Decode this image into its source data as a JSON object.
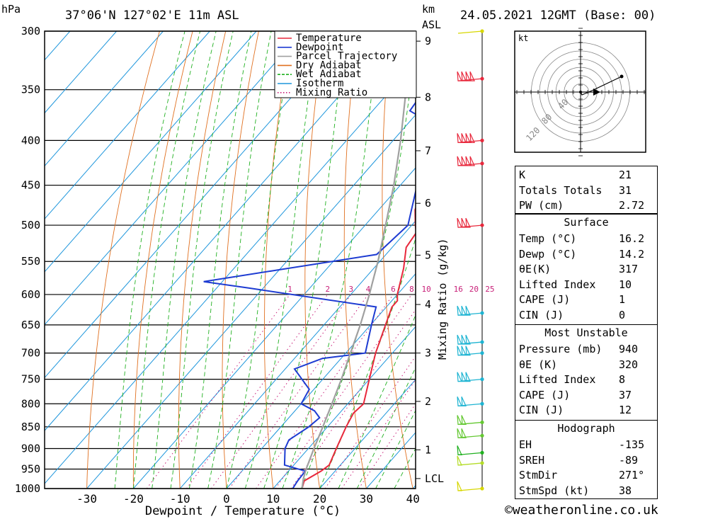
{
  "header": {
    "pressure_unit": "hPa",
    "location": "37°06'N 127°02'E 11m ASL",
    "km_unit": "km",
    "km_unit2": "ASL",
    "datetime": "24.05.2021 12GMT (Base: 00)"
  },
  "footer": {
    "credit": "©weatheronline.co.uk"
  },
  "chart_data": {
    "type": "line",
    "title": "",
    "xlabel": "Dewpoint / Temperature (°C)",
    "ylabel": "hPa",
    "right_axis_label": "Mixing Ratio (g/kg)",
    "xlim": [
      -40,
      40
    ],
    "ylim": [
      1000,
      300
    ],
    "pressure_ticks": [
      300,
      350,
      400,
      450,
      500,
      550,
      600,
      650,
      700,
      750,
      800,
      850,
      900,
      950,
      1000
    ],
    "temperature_ticks": [
      -30,
      -20,
      -10,
      0,
      10,
      20,
      30,
      40
    ],
    "km_ticks": [
      {
        "label": "1",
        "p": 903
      },
      {
        "label": "2",
        "p": 795
      },
      {
        "label": "3",
        "p": 700
      },
      {
        "label": "4",
        "p": 616
      },
      {
        "label": "5",
        "p": 541
      },
      {
        "label": "6",
        "p": 472
      },
      {
        "label": "7",
        "p": 411
      },
      {
        "label": "8",
        "p": 357
      },
      {
        "label": "9",
        "p": 308
      },
      {
        "label": "LCL",
        "p": 974
      }
    ],
    "mixing_ratio_labels": [
      "1",
      "2",
      "3",
      "4",
      "6",
      "8",
      "10",
      "16",
      "20",
      "25"
    ],
    "mixing_ratio_values": [
      1,
      2,
      3,
      4,
      6,
      8,
      10,
      16,
      20,
      25
    ],
    "legend": {
      "position": "top-right",
      "entries": [
        {
          "name": "Temperature",
          "color": "#e8283c",
          "style": "solid"
        },
        {
          "name": "Dewpoint",
          "color": "#1e3cd2",
          "style": "solid"
        },
        {
          "name": "Parcel Trajectory",
          "color": "#a0a0a0",
          "style": "solid"
        },
        {
          "name": "Dry Adiabat",
          "color": "#e07020",
          "style": "solid"
        },
        {
          "name": "Wet Adiabat",
          "color": "#20b020",
          "style": "dashed"
        },
        {
          "name": "Isotherm",
          "color": "#1e96dc",
          "style": "solid"
        },
        {
          "name": "Mixing Ratio",
          "color": "#c81e78",
          "style": "dotted"
        }
      ]
    },
    "series": [
      {
        "name": "Temperature",
        "color": "#e8283c",
        "points": [
          {
            "p": 1000,
            "t": 16.2
          },
          {
            "p": 980,
            "t": 15.2
          },
          {
            "p": 955,
            "t": 17
          },
          {
            "p": 940,
            "t": 17.6
          },
          {
            "p": 900,
            "t": 16
          },
          {
            "p": 850,
            "t": 14
          },
          {
            "p": 820,
            "t": 13
          },
          {
            "p": 800,
            "t": 13.4
          },
          {
            "p": 750,
            "t": 10
          },
          {
            "p": 700,
            "t": 6.4
          },
          {
            "p": 650,
            "t": 3.2
          },
          {
            "p": 620,
            "t": 1.2
          },
          {
            "p": 610,
            "t": 1.2
          },
          {
            "p": 600,
            "t": 0
          },
          {
            "p": 560,
            "t": -3.6
          },
          {
            "p": 530,
            "t": -7
          },
          {
            "p": 510,
            "t": -7.6
          },
          {
            "p": 500,
            "t": -9.2
          },
          {
            "p": 480,
            "t": -12.2
          },
          {
            "p": 450,
            "t": -14.8
          },
          {
            "p": 420,
            "t": -18.6
          },
          {
            "p": 400,
            "t": -22.6
          },
          {
            "p": 380,
            "t": -26
          },
          {
            "p": 350,
            "t": -31
          },
          {
            "p": 300,
            "t": -40
          }
        ]
      },
      {
        "name": "Dewpoint",
        "color": "#1e3cd2",
        "points": [
          {
            "p": 1000,
            "t": 14.2
          },
          {
            "p": 980,
            "t": 13.8
          },
          {
            "p": 955,
            "t": 13.6
          },
          {
            "p": 940,
            "t": 8
          },
          {
            "p": 900,
            "t": 5
          },
          {
            "p": 880,
            "t": 4.2
          },
          {
            "p": 850,
            "t": 6
          },
          {
            "p": 830,
            "t": 6.6
          },
          {
            "p": 815,
            "t": 4.2
          },
          {
            "p": 800,
            "t": 0
          },
          {
            "p": 770,
            "t": -1
          },
          {
            "p": 730,
            "t": -8
          },
          {
            "p": 710,
            "t": -4
          },
          {
            "p": 700,
            "t": 4.2
          },
          {
            "p": 650,
            "t": 0.2
          },
          {
            "p": 620,
            "t": -2.2
          },
          {
            "p": 590,
            "t": -33
          },
          {
            "p": 580,
            "t": -44
          },
          {
            "p": 540,
            "t": -12
          },
          {
            "p": 500,
            "t": -10.8
          },
          {
            "p": 450,
            "t": -16.4
          },
          {
            "p": 400,
            "t": -24
          },
          {
            "p": 380,
            "t": -26.4
          },
          {
            "p": 370,
            "t": -32
          },
          {
            "p": 350,
            "t": -32.8
          },
          {
            "p": 330,
            "t": -38
          },
          {
            "p": 300,
            "t": -52
          }
        ]
      },
      {
        "name": "Parcel Trajectory",
        "color": "#a0a0a0",
        "points": [
          {
            "p": 1000,
            "t": 16.2
          },
          {
            "p": 974,
            "t": 14.6
          },
          {
            "p": 950,
            "t": 13.4
          },
          {
            "p": 900,
            "t": 11.2
          },
          {
            "p": 850,
            "t": 9
          },
          {
            "p": 800,
            "t": 6.6
          },
          {
            "p": 750,
            "t": 4
          },
          {
            "p": 700,
            "t": 1
          },
          {
            "p": 650,
            "t": -2.2
          },
          {
            "p": 600,
            "t": -6
          },
          {
            "p": 550,
            "t": -10.4
          },
          {
            "p": 500,
            "t": -15.6
          },
          {
            "p": 450,
            "t": -21.4
          },
          {
            "p": 400,
            "t": -28.4
          },
          {
            "p": 350,
            "t": -36.8
          },
          {
            "p": 300,
            "t": -46.6
          }
        ]
      }
    ],
    "hodograph": {
      "unit": "kt",
      "ring_labels": [
        "40",
        "80",
        "120"
      ],
      "ring_values": [
        20,
        40,
        60,
        80,
        100,
        120
      ]
    },
    "wind_barbs": [
      {
        "p": 300,
        "flags": 0,
        "color": "#d7d700"
      },
      {
        "p": 340,
        "flags": 4,
        "color": "#e8283c"
      },
      {
        "p": 400,
        "flags": 4,
        "color": "#e8283c"
      },
      {
        "p": 425,
        "flags": 4,
        "color": "#e8283c"
      },
      {
        "p": 500,
        "flags": 3,
        "color": "#e8283c"
      },
      {
        "p": 630,
        "flags": 3,
        "color": "#1eb4d2"
      },
      {
        "p": 680,
        "flags": 3,
        "color": "#1eb4d2"
      },
      {
        "p": 700,
        "flags": 3,
        "color": "#1eb4d2"
      },
      {
        "p": 750,
        "flags": 3,
        "color": "#1eb4d2"
      },
      {
        "p": 800,
        "flags": 2,
        "color": "#1eb4d2"
      },
      {
        "p": 840,
        "flags": 2,
        "color": "#64c832"
      },
      {
        "p": 870,
        "flags": 2,
        "color": "#64c832"
      },
      {
        "p": 910,
        "flags": 1,
        "color": "#20b020"
      },
      {
        "p": 935,
        "flags": 1,
        "color": "#b4dc28"
      },
      {
        "p": 1000,
        "flags": 1,
        "color": "#d7d700"
      }
    ]
  },
  "indices": {
    "general": [
      {
        "key": "K",
        "value": "21"
      },
      {
        "key": "Totals Totals",
        "value": "31"
      },
      {
        "key": "PW (cm)",
        "value": "2.72"
      }
    ],
    "surface": {
      "title": "Surface",
      "rows": [
        {
          "key": "Temp (°C)",
          "value": "16.2"
        },
        {
          "key": "Dewp (°C)",
          "value": "14.2"
        },
        {
          "key": "θE(K)",
          "value": "317"
        },
        {
          "key": "Lifted Index",
          "value": "10"
        },
        {
          "key": "CAPE (J)",
          "value": "1"
        },
        {
          "key": "CIN (J)",
          "value": "0"
        }
      ]
    },
    "most_unstable": {
      "title": "Most Unstable",
      "rows": [
        {
          "key": "Pressure (mb)",
          "value": "940"
        },
        {
          "key": "θE (K)",
          "value": "320"
        },
        {
          "key": "Lifted Index",
          "value": "8"
        },
        {
          "key": "CAPE (J)",
          "value": "37"
        },
        {
          "key": "CIN (J)",
          "value": "12"
        }
      ]
    },
    "hodograph": {
      "title": "Hodograph",
      "rows": [
        {
          "key": "EH",
          "value": "-135"
        },
        {
          "key": "SREH",
          "value": "-89"
        },
        {
          "key": "StmDir",
          "value": "271°"
        },
        {
          "key": "StmSpd (kt)",
          "value": "38"
        }
      ]
    }
  }
}
